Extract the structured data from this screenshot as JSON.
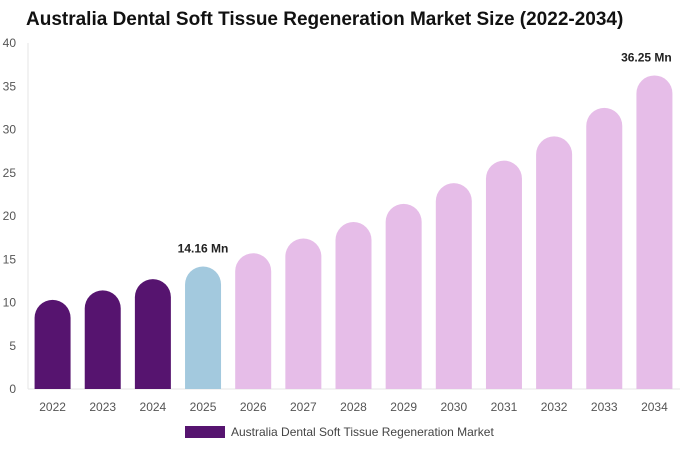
{
  "chart_data": {
    "type": "bar",
    "title": "Australia Dental Soft Tissue Regeneration Market Size (2022-2034)",
    "categories": [
      "2022",
      "2023",
      "2024",
      "2025",
      "2026",
      "2027",
      "2028",
      "2029",
      "2030",
      "2031",
      "2032",
      "2033",
      "2034"
    ],
    "series": [
      {
        "name": "Australia Dental Soft Tissue Regeneration Market",
        "values": [
          10.3,
          11.4,
          12.7,
          14.16,
          15.7,
          17.4,
          19.3,
          21.4,
          23.8,
          26.4,
          29.2,
          32.5,
          36.25
        ]
      }
    ],
    "bar_colors": [
      "#56146f",
      "#56146f",
      "#56146f",
      "#a3c9de",
      "#e6bde8",
      "#e6bde8",
      "#e6bde8",
      "#e6bde8",
      "#e6bde8",
      "#e6bde8",
      "#e6bde8",
      "#e6bde8",
      "#e6bde8"
    ],
    "data_labels": [
      {
        "category": "2025",
        "text": "14.16 Mn"
      },
      {
        "category": "2034",
        "text": "36.25 Mn"
      }
    ],
    "ylim": [
      0,
      40
    ],
    "yticks": [
      0,
      5,
      10,
      15,
      20,
      25,
      30,
      35,
      40
    ],
    "legend_position": "bottom",
    "legend_color": "#56146f",
    "grid": false
  }
}
